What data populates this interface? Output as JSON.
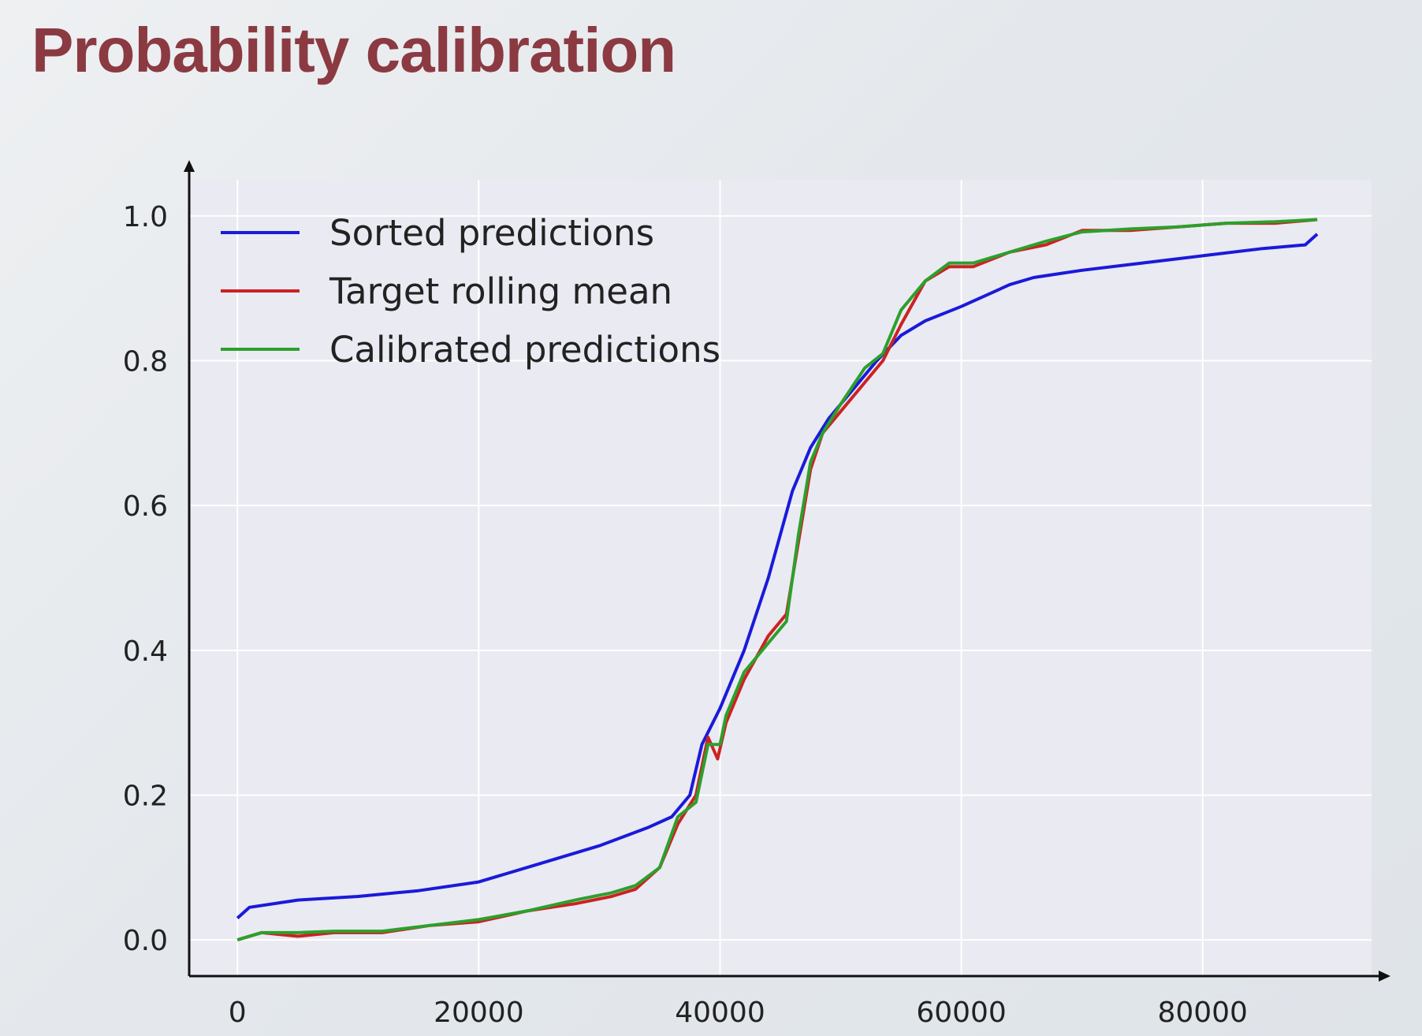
{
  "slide": {
    "title": "Probability calibration"
  },
  "chart_data": {
    "type": "line",
    "xlim": [
      -4000,
      94000
    ],
    "ylim": [
      -0.05,
      1.05
    ],
    "xticks": [
      0,
      20000,
      40000,
      60000,
      80000
    ],
    "yticks": [
      0.0,
      0.2,
      0.4,
      0.6,
      0.8,
      1.0
    ],
    "xtick_labels": [
      "0",
      "20000",
      "40000",
      "60000",
      "80000"
    ],
    "ytick_labels": [
      "0.0",
      "0.2",
      "0.4",
      "0.6",
      "0.8",
      "1.0"
    ],
    "grid": true,
    "legend_position": "top-left",
    "series": [
      {
        "name": "Sorted predictions",
        "color": "#1a1adb",
        "x": [
          0,
          1000,
          5000,
          10000,
          15000,
          20000,
          25000,
          30000,
          34000,
          36000,
          37500,
          38500,
          40000,
          42000,
          44000,
          46000,
          47500,
          49000,
          51000,
          53000,
          55000,
          57000,
          60000,
          62000,
          64000,
          66000,
          68000,
          70000,
          75000,
          80000,
          85000,
          88500,
          89500
        ],
        "y": [
          0.03,
          0.045,
          0.055,
          0.06,
          0.068,
          0.08,
          0.105,
          0.13,
          0.155,
          0.17,
          0.2,
          0.27,
          0.32,
          0.4,
          0.5,
          0.62,
          0.68,
          0.72,
          0.76,
          0.8,
          0.835,
          0.855,
          0.875,
          0.89,
          0.905,
          0.915,
          0.92,
          0.925,
          0.935,
          0.945,
          0.955,
          0.96,
          0.975
        ]
      },
      {
        "name": "Target rolling mean",
        "color": "#cc2222",
        "x": [
          0,
          2000,
          5000,
          8000,
          12000,
          16000,
          20000,
          24000,
          28000,
          31000,
          33000,
          35000,
          36500,
          38000,
          39000,
          39800,
          40500,
          42000,
          44000,
          45500,
          46500,
          47500,
          48500,
          50000,
          52000,
          53500,
          55000,
          57000,
          59000,
          61000,
          64000,
          67000,
          70000,
          74000,
          78000,
          82000,
          86000,
          89500
        ],
        "y": [
          0.0,
          0.01,
          0.005,
          0.01,
          0.01,
          0.02,
          0.025,
          0.04,
          0.05,
          0.06,
          0.07,
          0.1,
          0.16,
          0.2,
          0.28,
          0.25,
          0.3,
          0.36,
          0.42,
          0.45,
          0.55,
          0.65,
          0.7,
          0.73,
          0.77,
          0.8,
          0.85,
          0.91,
          0.93,
          0.93,
          0.95,
          0.96,
          0.98,
          0.98,
          0.985,
          0.99,
          0.99,
          0.995
        ]
      },
      {
        "name": "Calibrated predictions",
        "color": "#2ca02c",
        "x": [
          0,
          2000,
          5000,
          8000,
          12000,
          16000,
          20000,
          24000,
          28000,
          31000,
          33000,
          35000,
          36500,
          38000,
          39000,
          40000,
          40500,
          42000,
          44000,
          45500,
          46500,
          47500,
          48500,
          50000,
          52000,
          53500,
          55000,
          57000,
          59000,
          61000,
          64000,
          67000,
          70000,
          74000,
          78000,
          82000,
          86000,
          89500
        ],
        "y": [
          0.0,
          0.01,
          0.01,
          0.012,
          0.012,
          0.02,
          0.028,
          0.04,
          0.055,
          0.065,
          0.075,
          0.1,
          0.17,
          0.19,
          0.27,
          0.27,
          0.31,
          0.37,
          0.41,
          0.44,
          0.56,
          0.66,
          0.7,
          0.74,
          0.79,
          0.81,
          0.87,
          0.91,
          0.935,
          0.935,
          0.95,
          0.965,
          0.978,
          0.982,
          0.985,
          0.99,
          0.992,
          0.995
        ]
      }
    ]
  }
}
